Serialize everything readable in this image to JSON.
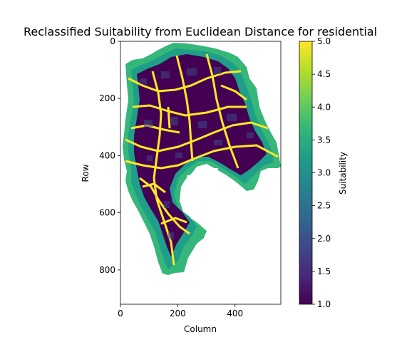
{
  "chart_data": {
    "type": "heatmap",
    "title": "Reclassified Suitability from Euclidean Distance for residential",
    "xlabel": "Column",
    "ylabel": "Row",
    "xlim": [
      0,
      560
    ],
    "ylim": [
      920,
      0
    ],
    "xticks": [
      0,
      200,
      400
    ],
    "yticks": [
      0,
      200,
      400,
      600,
      800
    ],
    "colorbar": {
      "label": "Suitability",
      "colormap": "viridis",
      "range": [
        1.0,
        5.0
      ],
      "ticks": [
        "1.0",
        "1.5",
        "2.0",
        "2.5",
        "3.0",
        "3.5",
        "4.0",
        "4.5",
        "5.0"
      ]
    },
    "colors": {
      "viridis": [
        "#440154",
        "#482878",
        "#3e4989",
        "#31688e",
        "#26828e",
        "#1f9e89",
        "#35b779",
        "#6ece58",
        "#b5de2b",
        "#fde725"
      ]
    }
  }
}
